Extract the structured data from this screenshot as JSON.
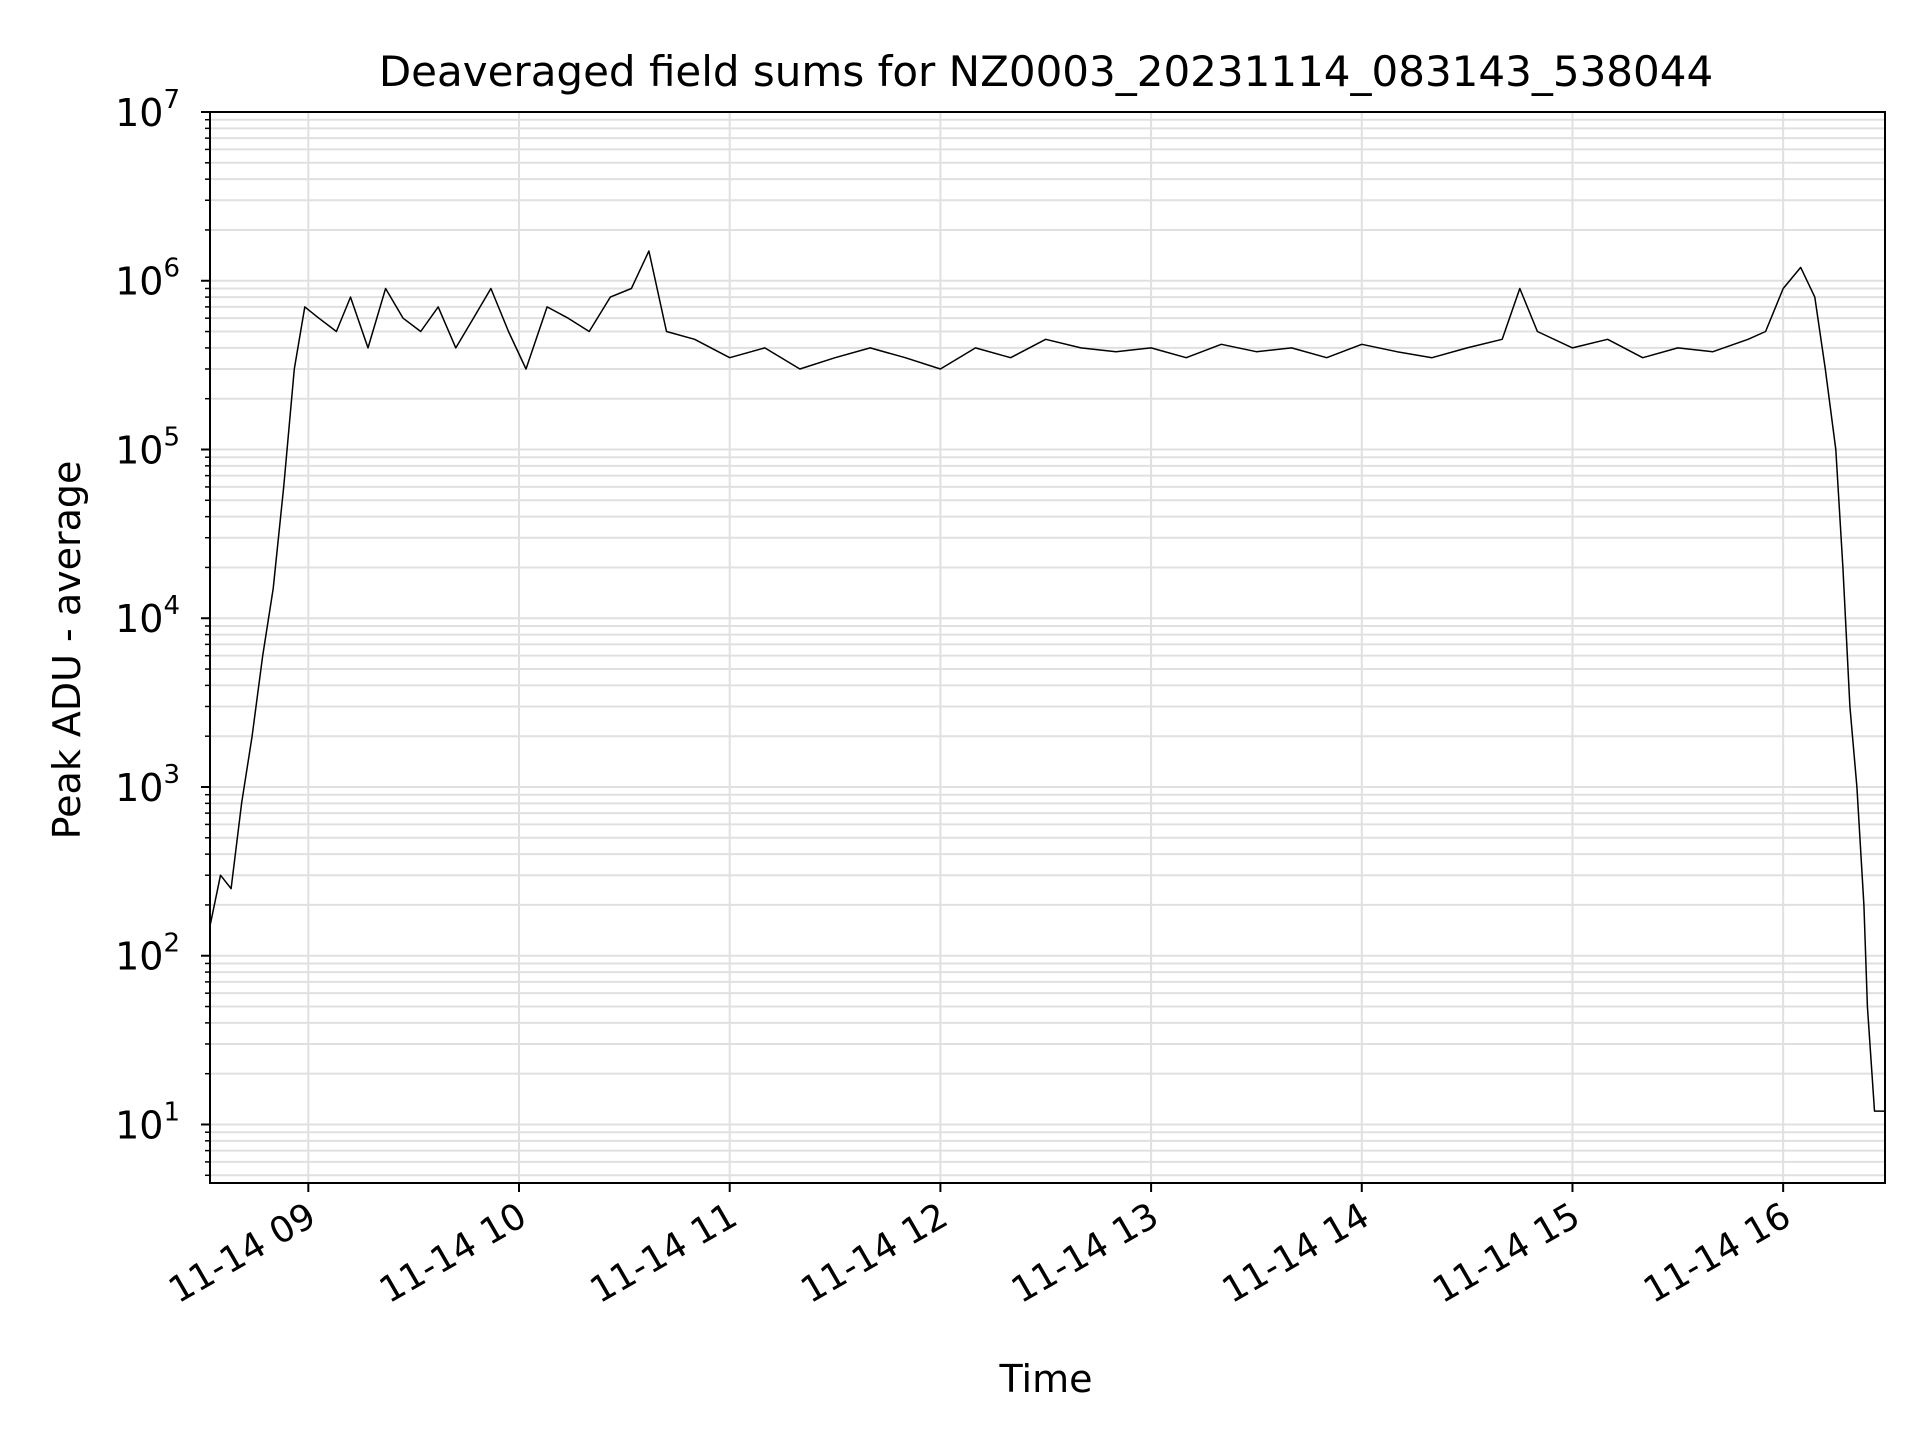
{
  "chart_data": {
    "type": "line",
    "title": "Deaveraged field sums for NZ0003_20231114_083143_538044",
    "xlabel": "Time",
    "ylabel": "Peak ADU - average",
    "yscale": "log",
    "ylim": [
      4.5,
      10000000
    ],
    "xlim": [
      "2023-11-14 08:32",
      "2023-11-14 16:29"
    ],
    "grid": true,
    "grid_minor": true,
    "legend": "none",
    "line_color": "#000000",
    "grid_color": "#e0e0e0",
    "x_ticks": [
      "11-14 09",
      "11-14 10",
      "11-14 11",
      "11-14 12",
      "11-14 13",
      "11-14 14",
      "11-14 15",
      "11-14 16"
    ],
    "x_tick_times": [
      "2023-11-14 09:00",
      "2023-11-14 10:00",
      "2023-11-14 11:00",
      "2023-11-14 12:00",
      "2023-11-14 13:00",
      "2023-11-14 14:00",
      "2023-11-14 15:00",
      "2023-11-14 16:00"
    ],
    "y_ticks": [
      {
        "value": 10,
        "base": "10",
        "exp": "1"
      },
      {
        "value": 100,
        "base": "10",
        "exp": "2"
      },
      {
        "value": 1000,
        "base": "10",
        "exp": "3"
      },
      {
        "value": 10000,
        "base": "10",
        "exp": "4"
      },
      {
        "value": 100000,
        "base": "10",
        "exp": "5"
      },
      {
        "value": 1000000,
        "base": "10",
        "exp": "6"
      },
      {
        "value": 10000000,
        "base": "10",
        "exp": "7"
      }
    ],
    "series": [
      {
        "x": [
          "2023-11-14 08:32",
          "2023-11-14 08:35",
          "2023-11-14 08:38",
          "2023-11-14 08:41",
          "2023-11-14 08:44",
          "2023-11-14 08:47",
          "2023-11-14 08:50",
          "2023-11-14 08:53",
          "2023-11-14 08:56",
          "2023-11-14 08:59",
          "2023-11-14 09:03",
          "2023-11-14 09:08",
          "2023-11-14 09:12",
          "2023-11-14 09:17",
          "2023-11-14 09:22",
          "2023-11-14 09:27",
          "2023-11-14 09:32",
          "2023-11-14 09:37",
          "2023-11-14 09:42",
          "2023-11-14 09:47",
          "2023-11-14 09:52",
          "2023-11-14 09:57",
          "2023-11-14 10:02",
          "2023-11-14 10:08",
          "2023-11-14 10:14",
          "2023-11-14 10:20",
          "2023-11-14 10:26",
          "2023-11-14 10:32",
          "2023-11-14 10:37",
          "2023-11-14 10:42",
          "2023-11-14 10:50",
          "2023-11-14 11:00",
          "2023-11-14 11:10",
          "2023-11-14 11:20",
          "2023-11-14 11:30",
          "2023-11-14 11:40",
          "2023-11-14 11:50",
          "2023-11-14 12:00",
          "2023-11-14 12:10",
          "2023-11-14 12:20",
          "2023-11-14 12:30",
          "2023-11-14 12:40",
          "2023-11-14 12:50",
          "2023-11-14 13:00",
          "2023-11-14 13:10",
          "2023-11-14 13:20",
          "2023-11-14 13:30",
          "2023-11-14 13:40",
          "2023-11-14 13:50",
          "2023-11-14 14:00",
          "2023-11-14 14:10",
          "2023-11-14 14:20",
          "2023-11-14 14:30",
          "2023-11-14 14:40",
          "2023-11-14 14:45",
          "2023-11-14 14:50",
          "2023-11-14 15:00",
          "2023-11-14 15:10",
          "2023-11-14 15:20",
          "2023-11-14 15:30",
          "2023-11-14 15:40",
          "2023-11-14 15:50",
          "2023-11-14 15:55",
          "2023-11-14 16:00",
          "2023-11-14 16:05",
          "2023-11-14 16:09",
          "2023-11-14 16:12",
          "2023-11-14 16:15",
          "2023-11-14 16:17",
          "2023-11-14 16:19",
          "2023-11-14 16:21",
          "2023-11-14 16:23",
          "2023-11-14 16:24",
          "2023-11-14 16:26",
          "2023-11-14 16:29"
        ],
        "y": [
          150,
          300,
          250,
          800,
          2000,
          6000,
          15000,
          60000,
          300000,
          700000,
          600000,
          500000,
          800000,
          400000,
          900000,
          600000,
          500000,
          700000,
          400000,
          600000,
          900000,
          500000,
          300000,
          700000,
          600000,
          500000,
          800000,
          900000,
          1500000,
          500000,
          450000,
          350000,
          400000,
          300000,
          350000,
          400000,
          350000,
          300000,
          400000,
          350000,
          450000,
          400000,
          380000,
          400000,
          350000,
          420000,
          380000,
          400000,
          350000,
          420000,
          380000,
          350000,
          400000,
          450000,
          900000,
          500000,
          400000,
          450000,
          350000,
          400000,
          380000,
          450000,
          500000,
          900000,
          1200000,
          800000,
          300000,
          100000,
          20000,
          3000,
          1000,
          200,
          50,
          12,
          12
        ]
      }
    ]
  }
}
